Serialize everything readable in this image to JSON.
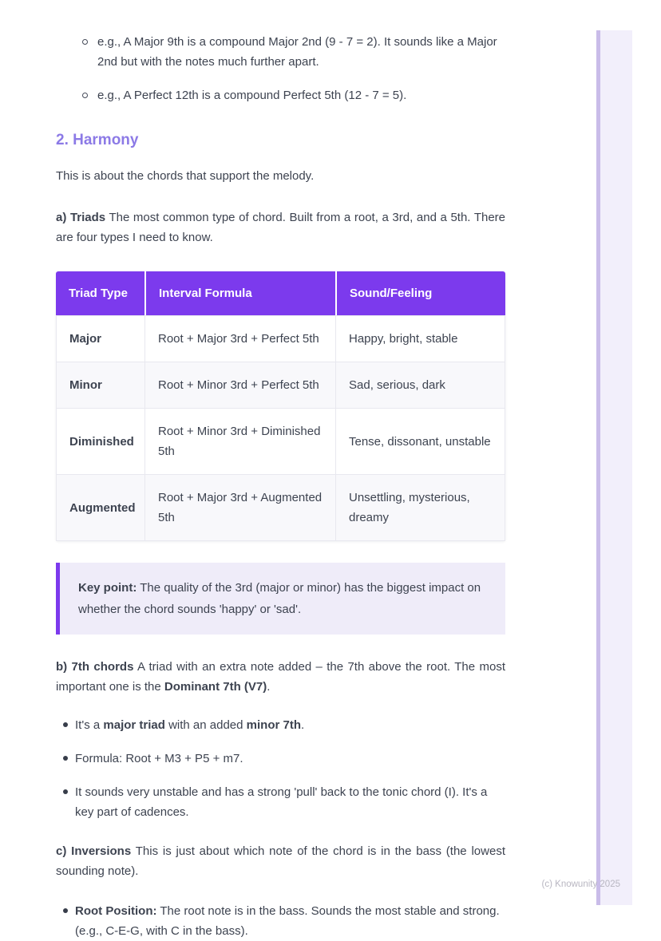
{
  "colors": {
    "accent_purple": "#7c3aed",
    "heading_purple": "#8c7ae6",
    "callout_bg": "#efecf9",
    "callout_border": "#7c3aed",
    "row_stripe": "#f8f8fb",
    "body_text": "#3d4350",
    "footer_text": "#b8b6c1",
    "next_page_edge_bg": "#f2effb",
    "next_page_edge_border": "#c9bce9"
  },
  "compound_examples": {
    "items": [
      "e.g., A Major 9th is a compound Major 2nd (9 - 7 = 2). It sounds like a Major 2nd but with the notes much further apart.",
      "e.g., A Perfect 12th is a compound Perfect 5th (12 - 7 = 5)."
    ]
  },
  "harmony": {
    "heading": "2. Harmony",
    "intro": "This is about the chords that support the melody.",
    "triads_intro_segments": [
      {
        "text": "a) Triads",
        "bold": true
      },
      {
        "text": " The most common type of chord. Built from a root, a 3rd, and a 5th. There are four types I need to know.",
        "bold": false
      }
    ],
    "table": {
      "headers": [
        "Triad Type",
        "Interval Formula",
        "Sound/Feeling"
      ],
      "rows": [
        [
          "Major",
          "Root + Major 3rd + Perfect 5th",
          "Happy, bright, stable"
        ],
        [
          "Minor",
          "Root + Minor 3rd + Perfect 5th",
          "Sad, serious, dark"
        ],
        [
          "Diminished",
          "Root + Minor 3rd + Diminished 5th",
          "Tense, dissonant, unstable"
        ],
        [
          "Augmented",
          "Root + Major 3rd + Augmented 5th",
          "Unsettling, mysterious, dreamy"
        ]
      ]
    },
    "keypoint_segments": [
      {
        "text": "Key point:",
        "bold": true
      },
      {
        "text": " The quality of the 3rd (major or minor) has the biggest impact on whether the chord sounds 'happy' or 'sad'.",
        "bold": false
      }
    ],
    "seventh_chords": {
      "intro_segments": [
        {
          "text": "b) 7th chords",
          "bold": true
        },
        {
          "text": " A triad with an extra note added – the 7th above the root. The most important one is the ",
          "bold": false
        },
        {
          "text": "Dominant 7th (V7)",
          "bold": true
        },
        {
          "text": ".",
          "bold": false
        }
      ],
      "bullets": [
        {
          "segments": [
            {
              "text": "It's a ",
              "bold": false
            },
            {
              "text": "major triad",
              "bold": true
            },
            {
              "text": " with an added ",
              "bold": false
            },
            {
              "text": "minor 7th",
              "bold": true
            },
            {
              "text": ".",
              "bold": false
            }
          ]
        },
        {
          "segments": [
            {
              "text": "Formula: Root + M3 + P5 + m7.",
              "bold": false
            }
          ]
        },
        {
          "segments": [
            {
              "text": "It sounds very unstable and has a strong 'pull' back to the tonic chord (I). It's a key part of cadences.",
              "bold": false
            }
          ]
        }
      ]
    },
    "inversions": {
      "intro_segments": [
        {
          "text": "c) Inversions",
          "bold": true
        },
        {
          "text": " This is just about which note of the chord is in the bass (the lowest sounding note).",
          "bold": false
        }
      ],
      "bullets": [
        {
          "segments": [
            {
              "text": "Root Position:",
              "bold": true
            },
            {
              "text": " The root note is in the bass. Sounds the most stable and strong. (e.g., C-E-G, with C in the bass).",
              "bold": false
            }
          ]
        }
      ]
    }
  },
  "page": {
    "footer": "(c) Knowunity 2025"
  }
}
